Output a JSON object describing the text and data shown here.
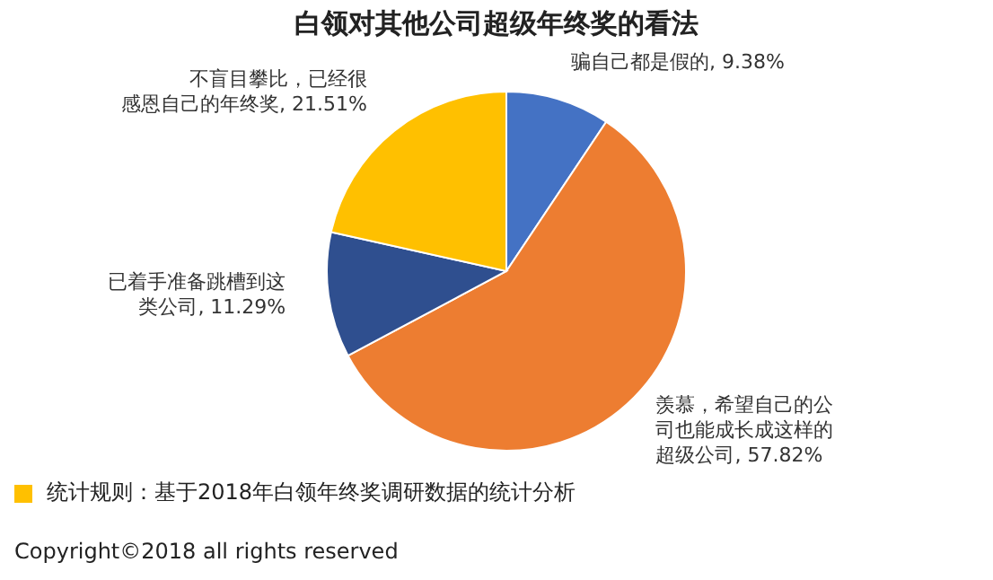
{
  "chart_data": {
    "type": "pie",
    "title": "白领对其他公司超级年终奖的看法",
    "categories": [
      "骗自己都是假的",
      "羡慕，希望自己的公司也能成长成这样的超级公司",
      "已着手准备跳槽到这类公司",
      "不盲目攀比，已经很感恩自己的年终奖"
    ],
    "values": [
      9.38,
      57.82,
      11.29,
      21.51
    ],
    "colors": [
      "#4472c4",
      "#ed7d31",
      "#2f4f8f",
      "#ffc000"
    ],
    "value_labels": [
      "9.38%",
      "57.82%",
      "11.29%",
      "21.51%"
    ],
    "annotations": [
      "统计规则：基于2018年白领年终奖调研数据的统计分析",
      "Copyright©2018 all rights reserved"
    ]
  }
}
